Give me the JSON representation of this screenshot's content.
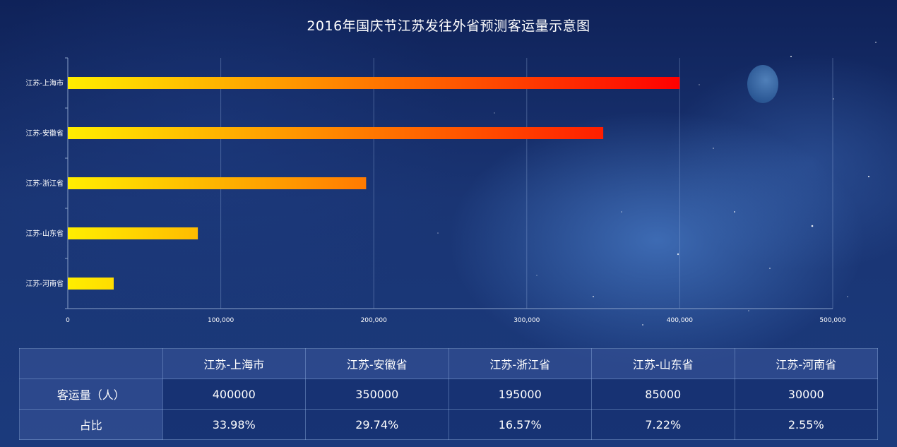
{
  "colors": {
    "bar_start": "#ffee00",
    "bar_end": "#ff0000",
    "axis": "#8aa1c9",
    "grid": "rgba(160,185,230,0.35)",
    "text": "#ffffff"
  },
  "chart_data": {
    "type": "bar",
    "orientation": "horizontal",
    "title": "2016年国庆节江苏发往外省预测客运量示意图",
    "categories": [
      "江苏-上海市",
      "江苏-安徽省",
      "江苏-浙江省",
      "江苏-山东省",
      "江苏-河南省"
    ],
    "values": [
      400000,
      350000,
      195000,
      85000,
      30000
    ],
    "xlim": [
      0,
      500000
    ],
    "xticks": [
      "0",
      "100,000",
      "200,000",
      "300,000",
      "400,000",
      "500,000"
    ],
    "grid": true,
    "xlabel": "",
    "ylabel": ""
  },
  "table": {
    "columns": [
      "江苏-上海市",
      "江苏-安徽省",
      "江苏-浙江省",
      "江苏-山东省",
      "江苏-河南省"
    ],
    "rows": [
      {
        "label": "客运量（人）",
        "cells": [
          "400000",
          "350000",
          "195000",
          "85000",
          "30000"
        ]
      },
      {
        "label": "占比",
        "cells": [
          "33.98%",
          "29.74%",
          "16.57%",
          "7.22%",
          "2.55%"
        ]
      }
    ]
  }
}
